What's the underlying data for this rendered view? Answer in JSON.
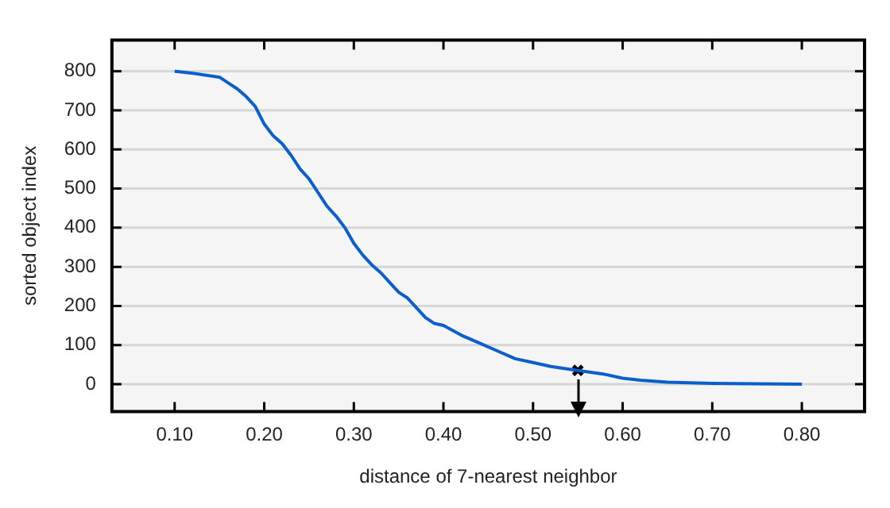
{
  "chart_data": {
    "type": "line",
    "xlabel": "distance of 7-nearest neighbor",
    "ylabel": "sorted object index",
    "xlim": [
      0.03,
      0.87
    ],
    "xticks": [
      {
        "value": 0.1,
        "label": "0.10"
      },
      {
        "value": 0.2,
        "label": "0.20"
      },
      {
        "value": 0.3,
        "label": "0.30"
      },
      {
        "value": 0.4,
        "label": "0.40"
      },
      {
        "value": 0.5,
        "label": "0.50"
      },
      {
        "value": 0.6,
        "label": "0.60"
      },
      {
        "value": 0.7,
        "label": "0.70"
      },
      {
        "value": 0.8,
        "label": "0.80"
      }
    ],
    "ylim": [
      -70,
      880
    ],
    "yticks": [
      0,
      100,
      200,
      300,
      400,
      500,
      600,
      700,
      800
    ],
    "grid": "y",
    "legend": false,
    "series": [
      {
        "color": "#0a5fcc",
        "marker": "none",
        "x": [
          0.1,
          0.12,
          0.15,
          0.16,
          0.17,
          0.18,
          0.19,
          0.2,
          0.21,
          0.22,
          0.23,
          0.24,
          0.25,
          0.26,
          0.27,
          0.28,
          0.29,
          0.3,
          0.31,
          0.32,
          0.33,
          0.34,
          0.35,
          0.36,
          0.37,
          0.38,
          0.39,
          0.4,
          0.42,
          0.44,
          0.46,
          0.48,
          0.5,
          0.52,
          0.55,
          0.58,
          0.6,
          0.62,
          0.65,
          0.7,
          0.75,
          0.8
        ],
        "values": [
          800,
          795,
          785,
          770,
          755,
          735,
          710,
          665,
          635,
          615,
          585,
          550,
          525,
          490,
          455,
          430,
          400,
          360,
          330,
          305,
          285,
          260,
          235,
          220,
          195,
          170,
          155,
          150,
          125,
          105,
          85,
          65,
          55,
          45,
          35,
          25,
          15,
          10,
          5,
          2,
          1,
          0
        ]
      },
      {
        "type": "scatter",
        "color": "#000000",
        "marker": "cross",
        "x": [
          0.55
        ],
        "values": [
          35
        ]
      }
    ]
  }
}
